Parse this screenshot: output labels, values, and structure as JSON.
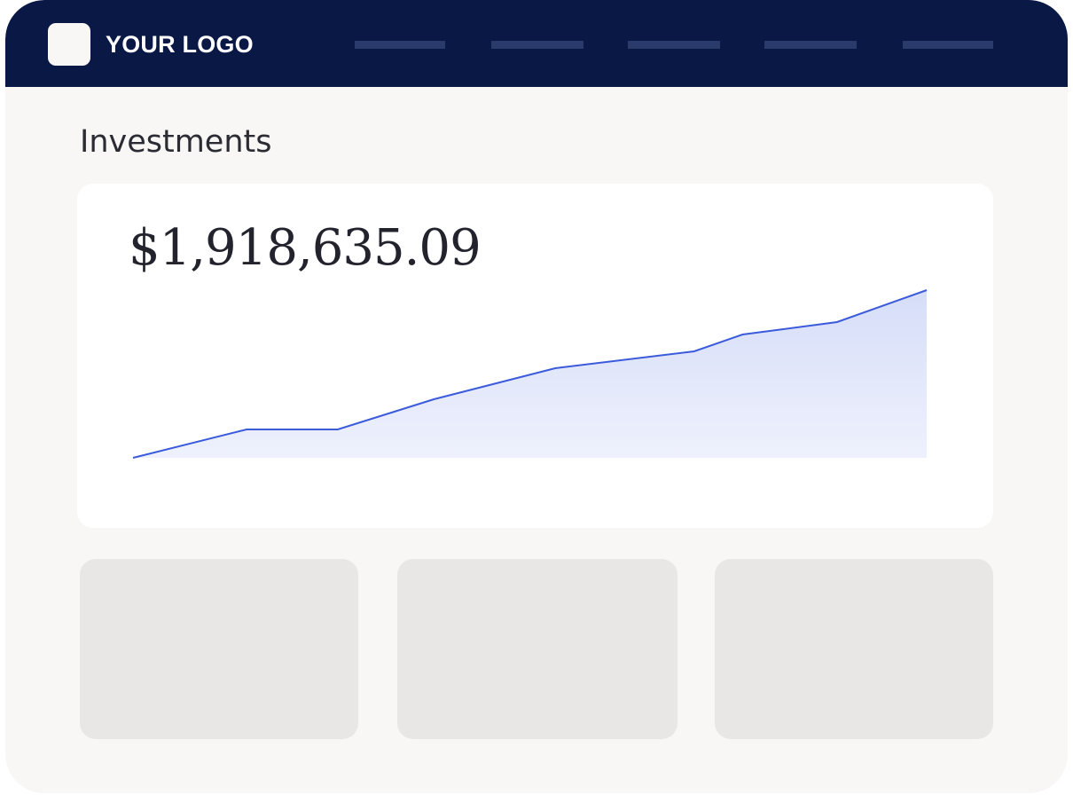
{
  "header": {
    "logo_text": "YOUR LOGO",
    "nav_placeholders": [
      "nav-1",
      "nav-2",
      "nav-3",
      "nav-4",
      "nav-5"
    ]
  },
  "page": {
    "title": "Investments"
  },
  "summary_card": {
    "amount": "$1,918,635.09"
  },
  "colors": {
    "navbar": "#0a1846",
    "background": "#f8f7f5",
    "line": "#3b5bdb",
    "area_fill": "#dfe5fa",
    "placeholder_tile": "#e8e7e5"
  },
  "chart_data": {
    "type": "area",
    "x": [
      0,
      1,
      2,
      3,
      4,
      5,
      6,
      7,
      8
    ],
    "values": [
      0,
      32,
      32,
      66,
      101,
      120,
      139,
      153,
      189
    ],
    "ylim": [
      0,
      189
    ],
    "grid": false,
    "legend": "none"
  },
  "tiles": [
    "tile-1",
    "tile-2",
    "tile-3"
  ]
}
